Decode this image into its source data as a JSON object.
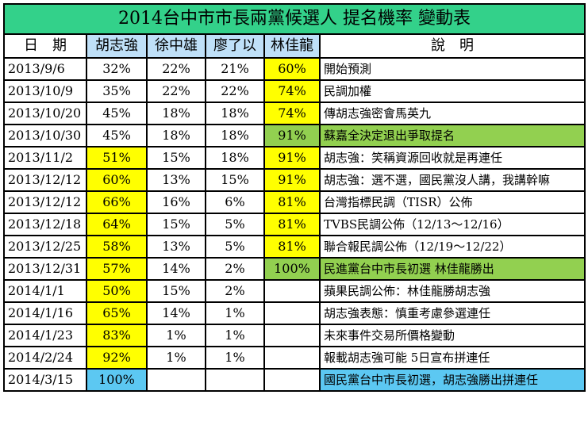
{
  "title": "2014台中市市長兩黨候選人 提名機率 變動表",
  "headers": [
    "日　期",
    "胡志強",
    "徐中雄",
    "廖了以",
    "林佳龍",
    "說　明"
  ],
  "rows": [
    {
      "date": "2013/9/6",
      "hu": "32%",
      "xu": "22%",
      "liao": "21%",
      "lin": "60%",
      "note": "開始預測",
      "hu_color": "",
      "lin_color": "yellow",
      "note_color": ""
    },
    {
      "date": "2013/10/9",
      "hu": "35%",
      "xu": "22%",
      "liao": "22%",
      "lin": "74%",
      "note": "民調加權",
      "hu_color": "",
      "lin_color": "yellow",
      "note_color": ""
    },
    {
      "date": "2013/10/20",
      "hu": "45%",
      "xu": "18%",
      "liao": "18%",
      "lin": "74%",
      "note": "傳胡志強密會馬英九",
      "hu_color": "",
      "lin_color": "yellow",
      "note_color": ""
    },
    {
      "date": "2013/10/30",
      "hu": "45%",
      "xu": "18%",
      "liao": "18%",
      "lin": "91%",
      "note": "蘇嘉全決定退出爭取提名",
      "hu_color": "",
      "lin_color": "green",
      "note_color": "green"
    },
    {
      "date": "2013/11/2",
      "hu": "51%",
      "xu": "15%",
      "liao": "18%",
      "lin": "91%",
      "note": "胡志強：笑稱資源回收就是再連任",
      "hu_color": "yellow",
      "lin_color": "yellow",
      "note_color": ""
    },
    {
      "date": "2013/12/12",
      "hu": "60%",
      "xu": "13%",
      "liao": "15%",
      "lin": "91%",
      "note": "胡志強：選不選，國民黨沒人講，我講幹嘛",
      "hu_color": "yellow",
      "lin_color": "yellow",
      "note_color": ""
    },
    {
      "date": "2013/12/12",
      "hu": "66%",
      "xu": "16%",
      "liao": "6%",
      "lin": "81%",
      "note": "台灣指標民調（TISR）公佈",
      "hu_color": "yellow",
      "lin_color": "yellow",
      "note_color": ""
    },
    {
      "date": "2013/12/18",
      "hu": "64%",
      "xu": "15%",
      "liao": "5%",
      "lin": "81%",
      "note": "TVBS民調公佈（12/13～12/16）",
      "hu_color": "yellow",
      "lin_color": "yellow",
      "note_color": ""
    },
    {
      "date": "2013/12/25",
      "hu": "58%",
      "xu": "13%",
      "liao": "5%",
      "lin": "81%",
      "note": "聯合報民調公佈（12/19～12/22）",
      "hu_color": "yellow",
      "lin_color": "yellow",
      "note_color": ""
    },
    {
      "date": "2013/12/31",
      "hu": "57%",
      "xu": "14%",
      "liao": "2%",
      "lin": "100%",
      "note": "民進黨台中市長初選 林佳龍勝出",
      "hu_color": "yellow",
      "lin_color": "green",
      "note_color": "green"
    },
    {
      "date": "2014/1/1",
      "hu": "50%",
      "xu": "15%",
      "liao": "2%",
      "lin": "",
      "note": "蘋果民調公佈：林佳龍勝胡志強",
      "hu_color": "yellow",
      "lin_color": "",
      "note_color": ""
    },
    {
      "date": "2014/1/16",
      "hu": "65%",
      "xu": "14%",
      "liao": "1%",
      "lin": "",
      "note": "胡志強表態：慎重考慮參選連任",
      "hu_color": "yellow",
      "lin_color": "",
      "note_color": ""
    },
    {
      "date": "2014/1/23",
      "hu": "83%",
      "xu": "1%",
      "liao": "1%",
      "lin": "",
      "note": "未來事件交易所價格變動",
      "hu_color": "yellow",
      "lin_color": "",
      "note_color": ""
    },
    {
      "date": "2014/2/24",
      "hu": "92%",
      "xu": "1%",
      "liao": "1%",
      "lin": "",
      "note": "報載胡志強可能 5日宣布拼連任",
      "hu_color": "yellow",
      "lin_color": "",
      "note_color": ""
    },
    {
      "date": "2014/3/15",
      "hu": "100%",
      "xu": "",
      "liao": "",
      "lin": "",
      "note": "國民黨台中市長初選，胡志強勝出拼連任",
      "hu_color": "blue",
      "lin_color": "",
      "note_color": "blue"
    }
  ]
}
